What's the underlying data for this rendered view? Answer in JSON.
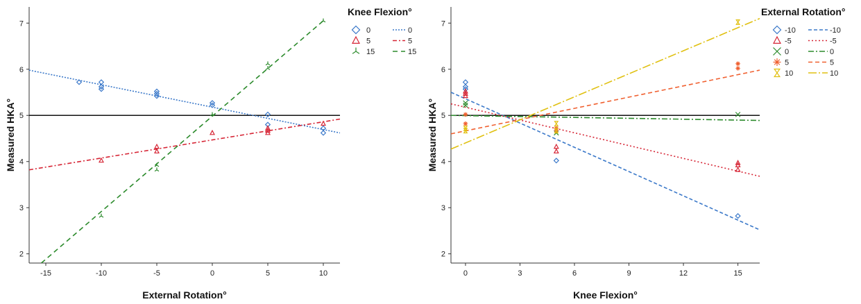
{
  "chart_data": [
    {
      "type": "scatter",
      "xlabel": "External Rotation°",
      "ylabel": "Measured HKA°",
      "xlim": [
        -16.5,
        11.5
      ],
      "ylim": [
        1.8,
        7.35
      ],
      "xticks": [
        -15,
        -10,
        -5,
        0,
        5,
        10
      ],
      "yticks": [
        2,
        3,
        4,
        5,
        6,
        7
      ],
      "reference_line": 5,
      "legend": {
        "title": "Knee Flexion°",
        "placement": "right",
        "markers": [
          "0",
          "5",
          "15"
        ],
        "lines": [
          "0",
          "5",
          "15"
        ]
      },
      "series": [
        {
          "name": "0",
          "color": "#3a78c9",
          "marker": "diamond",
          "dash": "2 2",
          "points": [
            [
              -12,
              5.72
            ],
            [
              -10,
              5.72
            ],
            [
              -10,
              5.62
            ],
            [
              -10,
              5.57
            ],
            [
              -5,
              5.52
            ],
            [
              -5,
              5.47
            ],
            [
              -5,
              5.42
            ],
            [
              0,
              5.27
            ],
            [
              0,
              5.22
            ],
            [
              5,
              5.02
            ],
            [
              5,
              4.8
            ],
            [
              10,
              4.72
            ],
            [
              10,
              4.62
            ]
          ],
          "fit": [
            [
              -16.5,
              5.98
            ],
            [
              11.5,
              4.62
            ]
          ]
        },
        {
          "name": "5",
          "color": "#d62535",
          "marker": "triangle",
          "dash": "6 3 2 3",
          "points": [
            [
              -10,
              4.02
            ],
            [
              -5,
              4.32
            ],
            [
              -5,
              4.22
            ],
            [
              0,
              4.62
            ],
            [
              5,
              4.72
            ],
            [
              5,
              4.67
            ],
            [
              5,
              4.62
            ],
            [
              10,
              4.82
            ]
          ],
          "fit": [
            [
              -16.5,
              3.82
            ],
            [
              11.5,
              4.92
            ]
          ]
        },
        {
          "name": "15",
          "color": "#2b8a2b",
          "marker": "ystar",
          "dash": "7 5",
          "points": [
            [
              -10,
              2.82
            ],
            [
              -5,
              3.92
            ],
            [
              -5,
              3.82
            ],
            [
              0,
              5.02
            ],
            [
              5,
              6.12
            ],
            [
              5,
              6.02
            ],
            [
              10,
              7.05
            ]
          ],
          "fit": [
            [
              -15.4,
              1.8
            ],
            [
              10,
              7.05
            ]
          ]
        }
      ]
    },
    {
      "type": "scatter",
      "xlabel": "Knee Flexion°",
      "ylabel": "Measured HKA°",
      "xlim": [
        -0.8,
        16.2
      ],
      "ylim": [
        1.8,
        7.35
      ],
      "xticks": [
        0,
        3,
        6,
        9,
        12,
        15
      ],
      "yticks": [
        2,
        3,
        4,
        5,
        6,
        7
      ],
      "reference_line": 5,
      "legend": {
        "title": "External Rotation°",
        "placement": "top-right",
        "markers": [
          "-10",
          "-5",
          "0",
          "5",
          "10"
        ],
        "lines": [
          "-10",
          "-5",
          "0",
          "5",
          "10"
        ]
      },
      "series": [
        {
          "name": "-10",
          "color": "#3a78c9",
          "marker": "diamond",
          "dash": "5 3",
          "points": [
            [
              0,
              5.72
            ],
            [
              0,
              5.62
            ],
            [
              0,
              5.57
            ],
            [
              5,
              4.02
            ],
            [
              15,
              2.82
            ]
          ],
          "fit": [
            [
              -0.8,
              5.5
            ],
            [
              16.2,
              2.52
            ]
          ]
        },
        {
          "name": "-5",
          "color": "#d62535",
          "marker": "triangle",
          "dash": "2 3",
          "points": [
            [
              0,
              5.52
            ],
            [
              0,
              5.47
            ],
            [
              0,
              5.42
            ],
            [
              5,
              4.32
            ],
            [
              5,
              4.22
            ],
            [
              15,
              3.97
            ],
            [
              15,
              3.92
            ],
            [
              15,
              3.82
            ]
          ],
          "fit": [
            [
              -0.8,
              5.25
            ],
            [
              16.2,
              3.68
            ]
          ]
        },
        {
          "name": "0",
          "color": "#2b8a2b",
          "marker": "cross",
          "dash": "8 3 2 3",
          "points": [
            [
              0,
              5.27
            ],
            [
              0,
              5.22
            ],
            [
              5,
              4.62
            ],
            [
              15,
              5.02
            ]
          ],
          "fit": [
            [
              -0.8,
              5.0
            ],
            [
              16.2,
              4.89
            ]
          ]
        },
        {
          "name": "5",
          "color": "#f06030",
          "marker": "star",
          "dash": "6 4",
          "points": [
            [
              0,
              5.02
            ],
            [
              0,
              4.82
            ],
            [
              5,
              4.72
            ],
            [
              5,
              4.67
            ],
            [
              15,
              6.12
            ],
            [
              15,
              6.02
            ]
          ],
          "fit": [
            [
              -0.8,
              4.6
            ],
            [
              16.2,
              5.98
            ]
          ]
        },
        {
          "name": "10",
          "color": "#e0c010",
          "marker": "hourglass",
          "dash": "12 3 2 3",
          "points": [
            [
              0,
              4.72
            ],
            [
              0,
              4.67
            ],
            [
              5,
              4.82
            ],
            [
              5,
              4.67
            ],
            [
              15,
              7.02
            ]
          ],
          "fit": [
            [
              -0.8,
              4.27
            ],
            [
              16.2,
              7.1
            ]
          ]
        }
      ]
    }
  ]
}
